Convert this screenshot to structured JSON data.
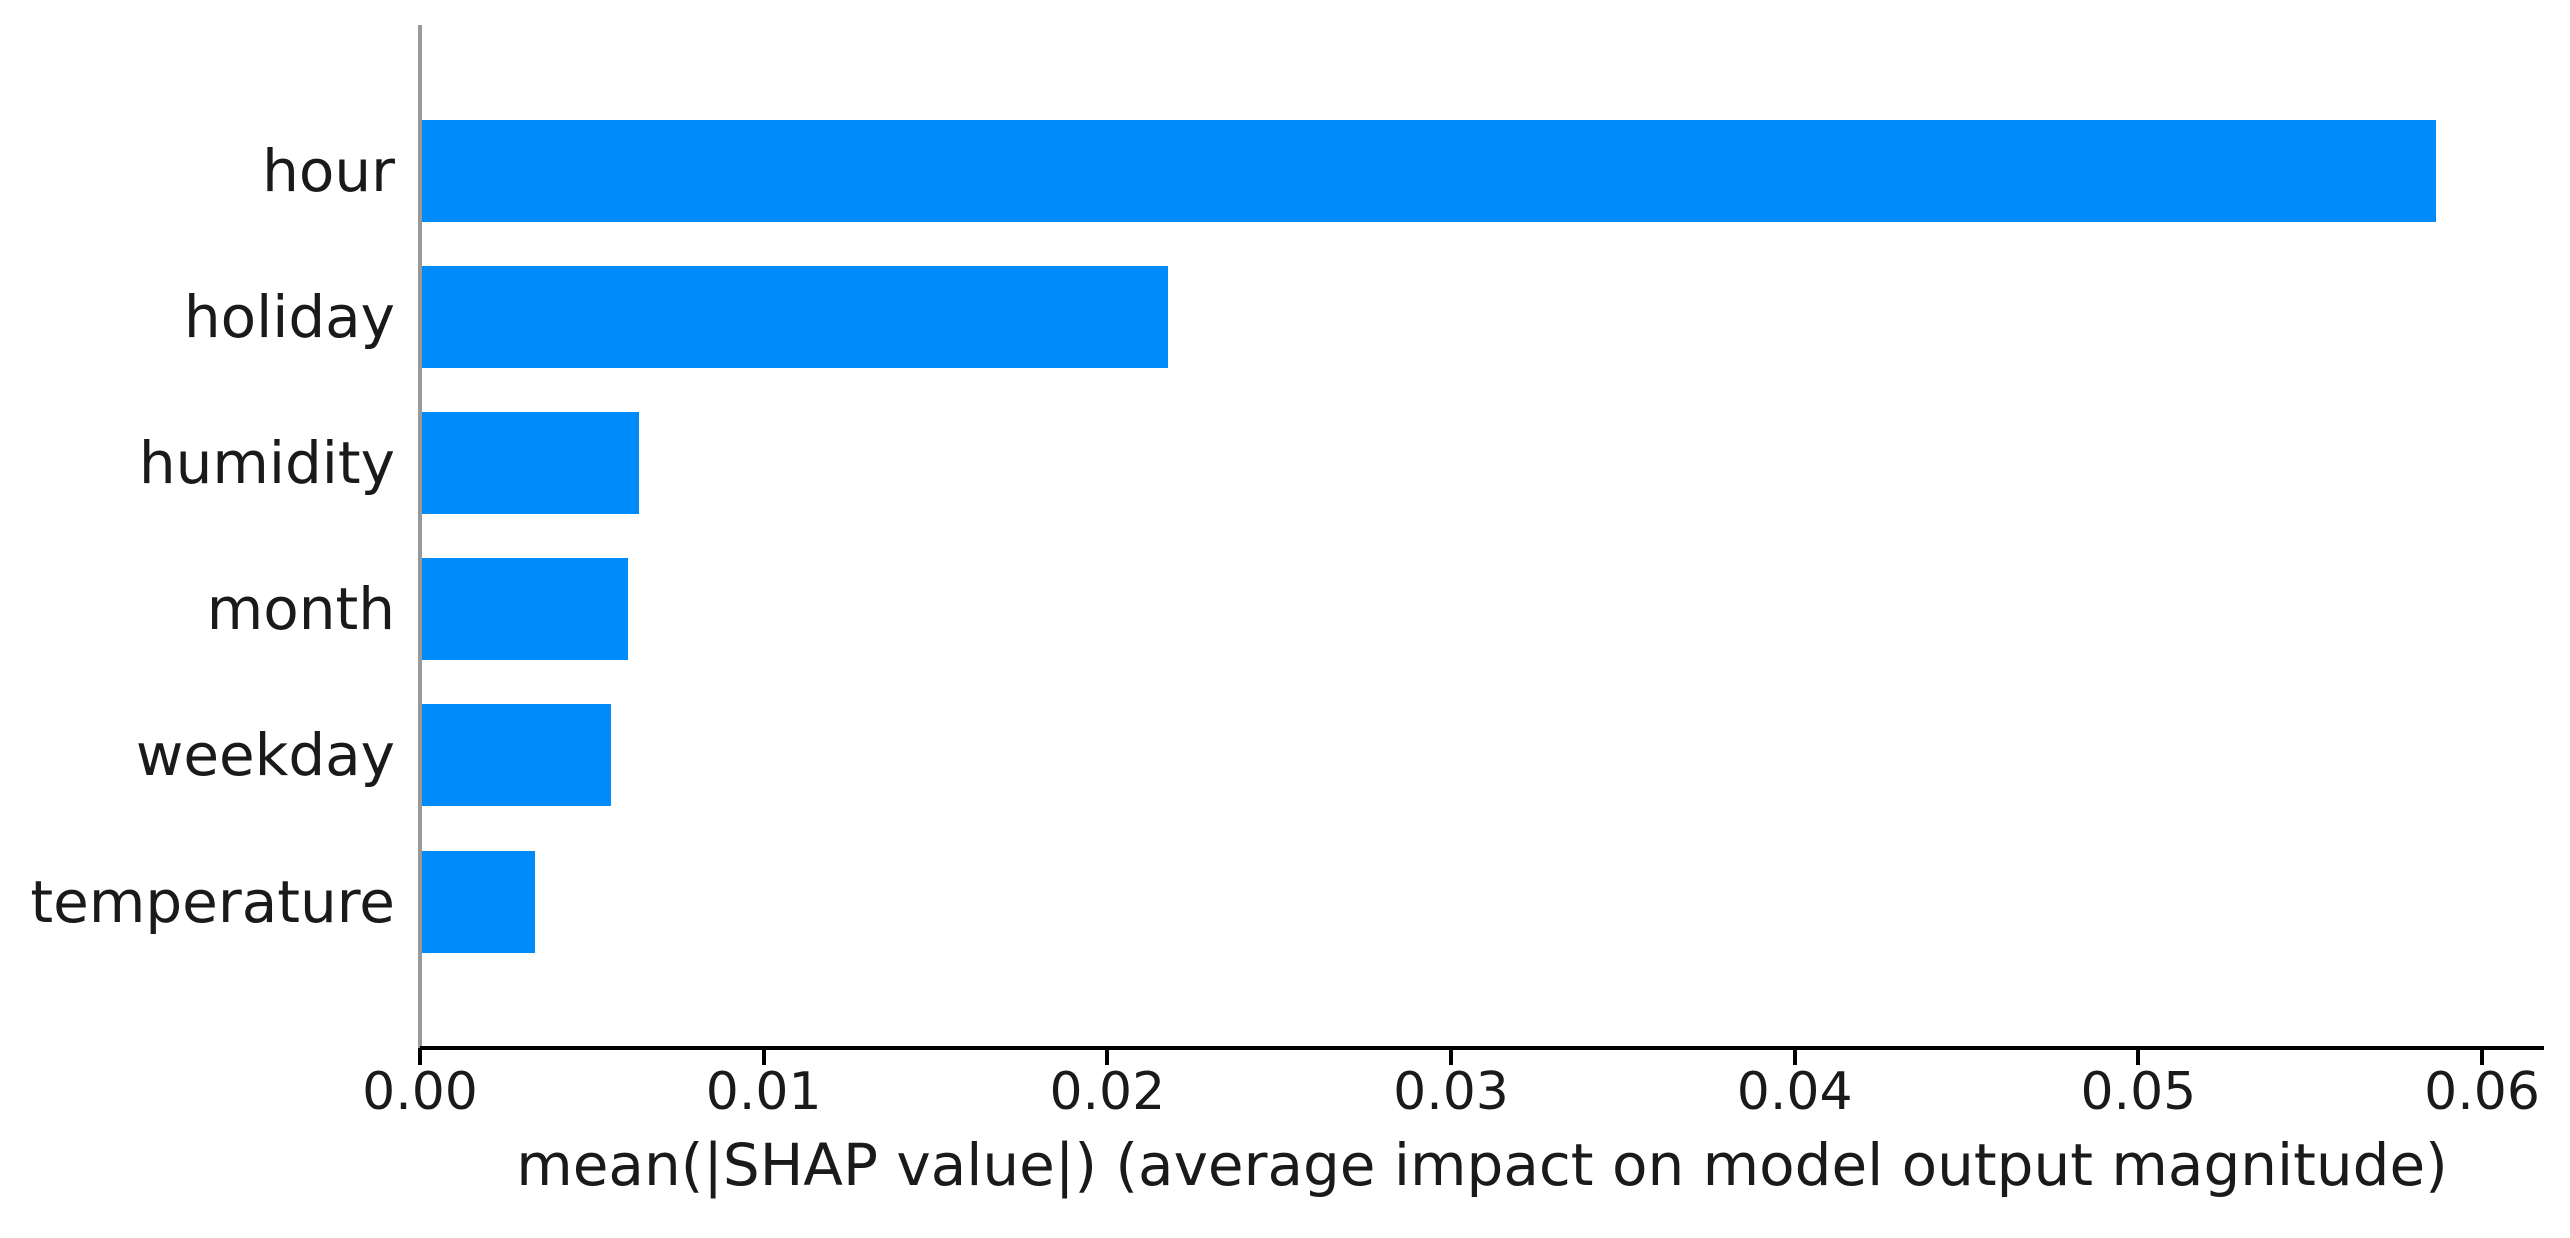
{
  "figure": {
    "background_color": "#ffffff"
  },
  "chart_data": {
    "type": "bar",
    "orientation": "horizontal",
    "title": "",
    "xlabel": "mean(|SHAP value|) (average impact on model output magnitude)",
    "ylabel": "",
    "categories": [
      "hour",
      "holiday",
      "humidity",
      "month",
      "weekday",
      "temperature"
    ],
    "values": [
      0.0586,
      0.0217,
      0.0063,
      0.006,
      0.0055,
      0.0033
    ],
    "xlim": [
      0,
      0.0617
    ],
    "xticks": [
      0,
      0.01,
      0.02,
      0.03,
      0.04,
      0.05,
      0.06
    ],
    "xtick_labels": [
      "0.00",
      "0.01",
      "0.02",
      "0.03",
      "0.04",
      "0.05",
      "0.06"
    ],
    "grid": false,
    "legend": null,
    "bar_color": "#008bfb",
    "baseline_color": "#000000",
    "zero_line_color": "#999999",
    "text_color": "#1a1a1a"
  }
}
